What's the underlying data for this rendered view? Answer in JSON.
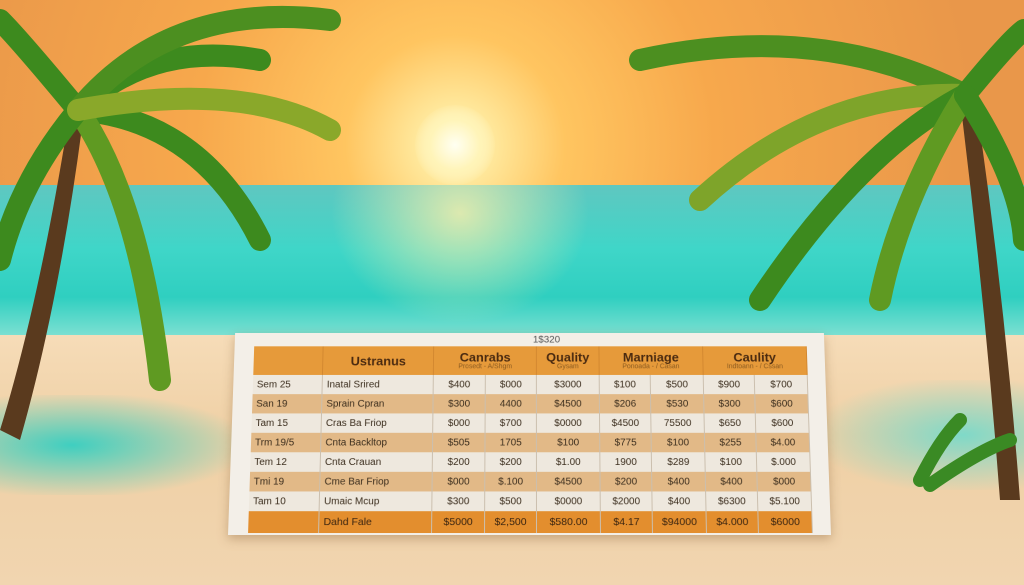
{
  "scene": {
    "sky_color": "#f7a84c",
    "sea_color": "#3fd6c8",
    "sand_color": "#efd0a5",
    "accent": "#e69a3a"
  },
  "board": {
    "title": "1$320",
    "headers": [
      {
        "label": "",
        "sub": ""
      },
      {
        "label": "Ustranus",
        "sub": ""
      },
      {
        "label": "Canrabs",
        "sub": "Prosedt - A/Shgm"
      },
      {
        "label": "Quality",
        "sub": "Gysam"
      },
      {
        "label": "Marniage",
        "sub": "Ponoada - / Casan"
      },
      {
        "label": "Caulity",
        "sub": "Indtoann - / Cssan"
      }
    ],
    "rows": [
      [
        "Sem 25",
        "Inatal Srired",
        "$400",
        "$000",
        "$3000",
        "$100",
        "$500",
        "$900",
        "$700"
      ],
      [
        "San 19",
        "Sprain Cpran",
        "$300",
        "4400",
        "$4500",
        "$206",
        "$530",
        "$300",
        "$600"
      ],
      [
        "Tam 15",
        "Cras Ba Friop",
        "$000",
        "$700",
        "$0000",
        "$4500",
        "75500",
        "$650",
        "$600"
      ],
      [
        "Trm 19/5",
        "Cnta Backltop",
        "$505",
        "1705",
        "$100",
        "$775",
        "$100",
        "$255",
        "$4.00"
      ],
      [
        "Tem 12",
        "Cnta Crauan",
        "$200",
        "$200",
        "$1.00",
        "1900",
        "$289",
        "$100",
        "$.000"
      ],
      [
        "Tmi 19",
        "Cme Bar Friop",
        "$000",
        "$.100",
        "$4500",
        "$200",
        "$400",
        "$400",
        "$000"
      ],
      [
        "Tam 10",
        "Umaic Mcup",
        "$300",
        "$500",
        "$0000",
        "$2000",
        "$400",
        "$6300",
        "$5.100"
      ]
    ],
    "total": [
      "",
      "Dahd Fale",
      "$5000",
      "$2,500",
      "$580.00",
      "$4.17",
      "$94000",
      "$4.000",
      "$6000"
    ]
  }
}
